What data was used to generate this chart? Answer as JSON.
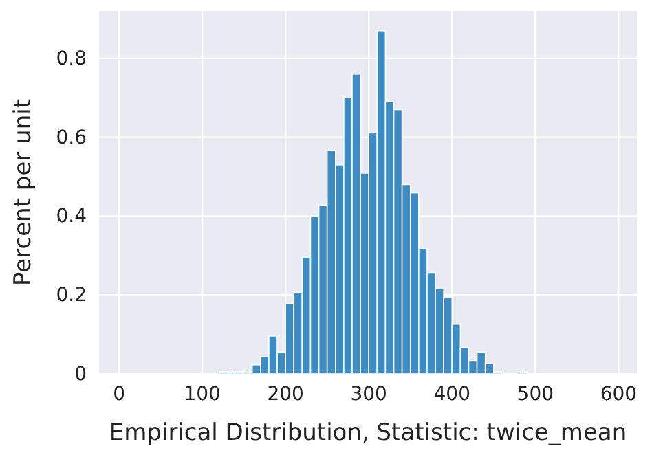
{
  "chart_data": {
    "type": "histogram",
    "xlabel": "Empirical Distribution, Statistic: twice_mean",
    "ylabel": "Percent per unit",
    "bins": [
      120,
      130,
      140,
      150,
      160,
      170,
      180,
      190,
      200,
      210,
      220,
      230,
      240,
      250,
      260,
      270,
      280,
      290,
      300,
      310,
      320,
      330,
      340,
      350,
      360,
      370,
      380,
      390,
      400,
      410,
      420,
      430,
      440,
      450,
      460,
      470,
      480,
      490
    ],
    "values": [
      0.005,
      0.005,
      0.005,
      0.005,
      0.023,
      0.044,
      0.096,
      0.055,
      0.178,
      0.207,
      0.296,
      0.399,
      0.428,
      0.567,
      0.53,
      0.7,
      0.76,
      0.509,
      0.611,
      0.87,
      0.69,
      0.67,
      0.48,
      0.459,
      0.318,
      0.257,
      0.216,
      0.195,
      0.126,
      0.067,
      0.034,
      0.055,
      0.026,
      0.005,
      0,
      0,
      0.005
    ],
    "color": "#3d8bc3",
    "xlim": [
      -24,
      622
    ],
    "ylim": [
      0,
      0.92
    ],
    "xticks": [
      0,
      100,
      200,
      300,
      400,
      500,
      600
    ],
    "yticks": [
      0,
      {
        "value": 0.2,
        "label": "0.2"
      },
      {
        "value": 0.4,
        "label": "0.4"
      },
      {
        "value": 0.6,
        "label": "0.6"
      },
      {
        "value": 0.8,
        "label": "0.8"
      }
    ],
    "grid": true
  }
}
